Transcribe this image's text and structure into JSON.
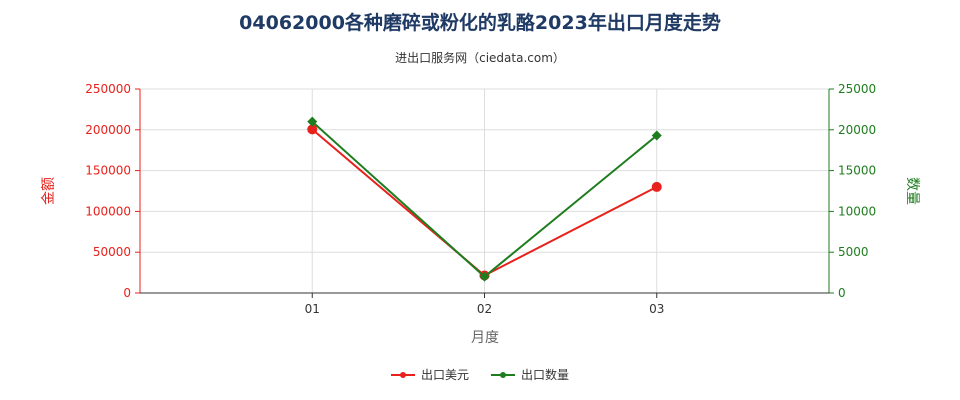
{
  "chart_data": {
    "type": "line",
    "title": "04062000各种磨碎或粉化的乳酪2023年出口月度走势",
    "subtitle": "进出口服务网（ciedata.com）",
    "xlabel": "月度",
    "ylabel_left": "金额",
    "ylabel_right": "数量",
    "categories": [
      "01",
      "02",
      "03"
    ],
    "y_left": {
      "lim": [
        0,
        250000
      ],
      "ticks": [
        "0",
        "50000",
        "100000",
        "150000",
        "200000",
        "250000"
      ]
    },
    "y_right": {
      "lim": [
        0,
        25000
      ],
      "ticks": [
        "0",
        "5000",
        "10000",
        "15000",
        "20000",
        "25000"
      ]
    },
    "series": [
      {
        "name": "出口美元",
        "axis": "left",
        "color": "#e8211c",
        "marker": "circle",
        "values": [
          200500,
          21500,
          130000
        ]
      },
      {
        "name": "出口数量",
        "axis": "right",
        "color": "#1e7d1e",
        "marker": "diamond",
        "values": [
          21000,
          2000,
          19300
        ]
      }
    ],
    "grid": true,
    "legend_position": "bottom-center",
    "left_axis_color": "#e8211c",
    "right_axis_color": "#1e7d1e"
  }
}
